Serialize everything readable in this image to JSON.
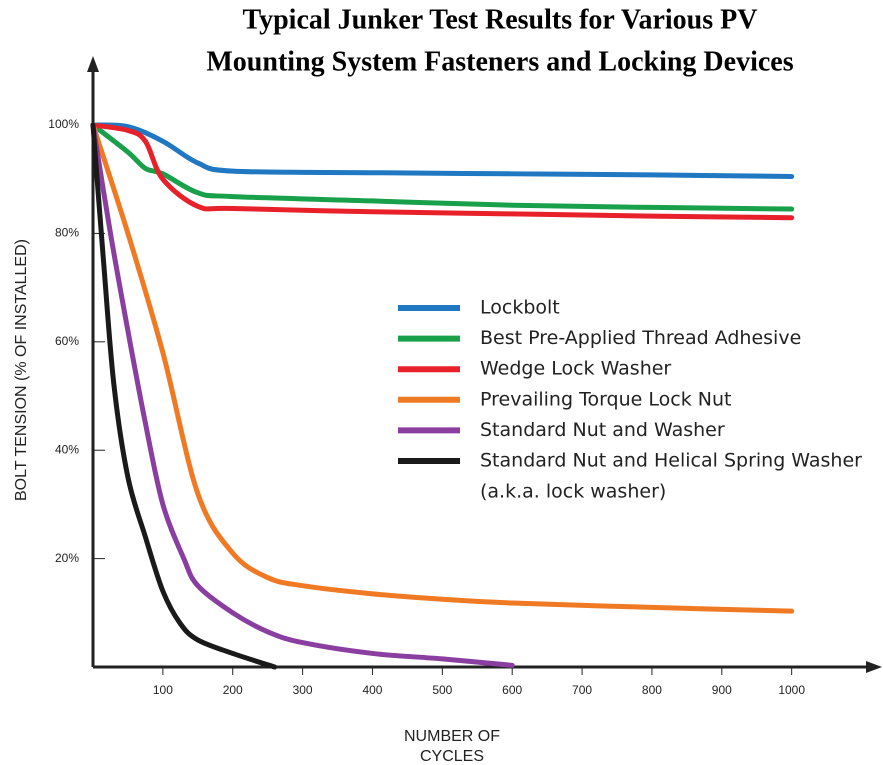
{
  "chart_data": {
    "type": "line",
    "title": [
      "Typical Junker Test Results for Various PV",
      "Mounting System Fasteners and Locking Devices"
    ],
    "xlabel": [
      "NUMBER OF",
      "CYCLES"
    ],
    "ylabel": "BOLT TENSION (% OF INSTALLED)",
    "xlim": [
      0,
      1125
    ],
    "ylim": [
      0,
      112
    ],
    "xticks": [
      100,
      200,
      300,
      400,
      500,
      600,
      700,
      800,
      900,
      1000
    ],
    "yticks": [
      {
        "value": 20,
        "label": "20%"
      },
      {
        "value": 40,
        "label": "40%"
      },
      {
        "value": 60,
        "label": "60%"
      },
      {
        "value": 80,
        "label": "80%"
      },
      {
        "value": 100,
        "label": "100%"
      }
    ],
    "annotations": [
      "(a.k.a. lock washer)"
    ],
    "series": [
      {
        "name": "Lockbolt",
        "color": "#1f78c1",
        "x": [
          0,
          50,
          100,
          150,
          200,
          400,
          600,
          800,
          1000
        ],
        "values": [
          100,
          99.7,
          97,
          93,
          91.5,
          91.2,
          91,
          90.8,
          90.5
        ]
      },
      {
        "name": "Best Pre-Applied Thread Adhesive",
        "color": "#19a04a",
        "x": [
          0,
          50,
          75,
          100,
          150,
          200,
          400,
          600,
          800,
          1000
        ],
        "values": [
          100,
          95,
          92,
          91,
          87.5,
          86.8,
          86,
          85.2,
          84.8,
          84.5
        ]
      },
      {
        "name": "Wedge Lock Washer",
        "color": "#e8202a",
        "x": [
          0,
          50,
          75,
          100,
          150,
          200,
          400,
          600,
          800,
          1000
        ],
        "values": [
          100,
          99,
          97,
          90,
          85,
          84.6,
          84,
          83.6,
          83.2,
          82.9
        ]
      },
      {
        "name": "Prevailing Torque Lock Nut",
        "color": "#f07a24",
        "x": [
          0,
          50,
          100,
          150,
          200,
          250,
          300,
          400,
          500,
          600,
          800,
          1000
        ],
        "values": [
          100,
          80,
          58,
          32,
          21,
          16.5,
          15,
          13.5,
          12.5,
          11.8,
          11,
          10.3
        ]
      },
      {
        "name": "Standard Nut and Washer",
        "color": "#8a3fa0",
        "x": [
          0,
          25,
          50,
          75,
          100,
          130,
          150,
          200,
          250,
          300,
          400,
          500,
          600
        ],
        "values": [
          100,
          80,
          62,
          45,
          30,
          20,
          15,
          10,
          6.5,
          4.5,
          2.5,
          1.5,
          0.3
        ]
      },
      {
        "name": "Standard Nut and Helical Spring Washer",
        "color": "#1a1a1a",
        "x": [
          0,
          15,
          30,
          50,
          75,
          100,
          125,
          150,
          200,
          260
        ],
        "values": [
          100,
          75,
          52,
          35,
          24,
          14,
          8,
          5,
          2.5,
          0
        ]
      }
    ]
  }
}
